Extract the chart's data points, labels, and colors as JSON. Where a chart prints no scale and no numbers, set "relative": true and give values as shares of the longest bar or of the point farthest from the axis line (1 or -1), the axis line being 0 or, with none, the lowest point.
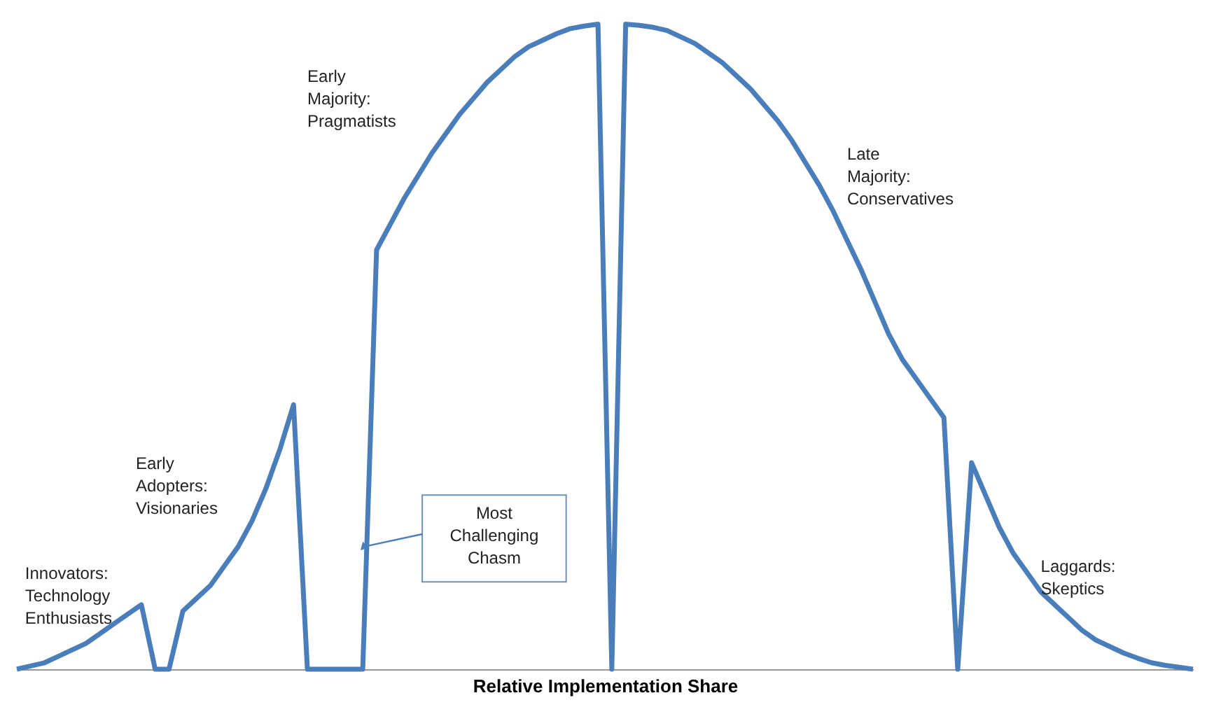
{
  "chart_data": {
    "type": "line",
    "relative": true,
    "tick_labels": false,
    "grid": false,
    "marker": "none",
    "line_style": "solid",
    "xlabel": "Relative Implementation Share",
    "categories": [
      null,
      null,
      null,
      null,
      null,
      null,
      null,
      null,
      null,
      null,
      null,
      null,
      null,
      null,
      null,
      null,
      null,
      null,
      null,
      null,
      null,
      null,
      null,
      null,
      null,
      null,
      null,
      null,
      null,
      null,
      null,
      null,
      null,
      null,
      null,
      null,
      null,
      null,
      null,
      null,
      null,
      null,
      null,
      null,
      null,
      null,
      null,
      null,
      null,
      null,
      null,
      null,
      null,
      null,
      null,
      null,
      null,
      null,
      null,
      null,
      null,
      null,
      null,
      null,
      null,
      null,
      null,
      null,
      null,
      null,
      null,
      null,
      null,
      null,
      null,
      null,
      null,
      null,
      null,
      null,
      null,
      null,
      null,
      null,
      null,
      null
    ],
    "series": [
      {
        "color": "#4a7ebb",
        "values": [
          0,
          0.005,
          0.01,
          0.02,
          0.03,
          0.04,
          0.055,
          0.07,
          0.085,
          0.1,
          0,
          0,
          0.09,
          0.11,
          0.13,
          0.16,
          0.19,
          0.23,
          0.28,
          0.34,
          0.41,
          0,
          0,
          0,
          0,
          0,
          0.65,
          0.69,
          0.73,
          0.765,
          0.8,
          0.83,
          0.86,
          0.885,
          0.91,
          0.93,
          0.95,
          0.965,
          0.975,
          0.985,
          0.993,
          0.997,
          1.0,
          0,
          1.0,
          0.998,
          0.995,
          0.99,
          0.98,
          0.97,
          0.955,
          0.94,
          0.92,
          0.9,
          0.875,
          0.85,
          0.82,
          0.785,
          0.75,
          0.71,
          0.665,
          0.62,
          0.57,
          0.52,
          0.48,
          0.45,
          0.42,
          0.39,
          0,
          0.32,
          0.27,
          0.22,
          0.18,
          0.15,
          0.12,
          0.1,
          0.08,
          0.06,
          0.045,
          0.035,
          0.025,
          0.017,
          0.01,
          0.006,
          0.003,
          0
        ]
      }
    ],
    "annotations": [
      "Innovators:\nTechnology\nEnthusiasts",
      "Early\nAdopters:\nVisionaries",
      "Early\nMajority:\nPragmatists",
      "Late\nMajority:\nConservatives",
      "Laggards:\nSkeptics",
      "Most\nChallenging\nChasm"
    ]
  }
}
